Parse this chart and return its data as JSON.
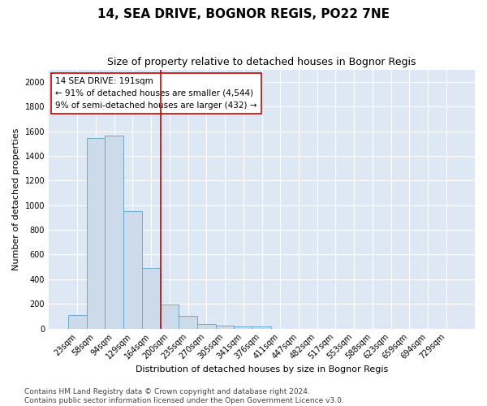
{
  "title": "14, SEA DRIVE, BOGNOR REGIS, PO22 7NE",
  "subtitle": "Size of property relative to detached houses in Bognor Regis",
  "xlabel": "Distribution of detached houses by size in Bognor Regis",
  "ylabel": "Number of detached properties",
  "categories": [
    "23sqm",
    "58sqm",
    "94sqm",
    "129sqm",
    "164sqm",
    "200sqm",
    "235sqm",
    "270sqm",
    "305sqm",
    "341sqm",
    "376sqm",
    "411sqm",
    "447sqm",
    "482sqm",
    "517sqm",
    "553sqm",
    "588sqm",
    "623sqm",
    "659sqm",
    "694sqm",
    "729sqm"
  ],
  "values": [
    110,
    1545,
    1565,
    950,
    490,
    195,
    100,
    35,
    25,
    20,
    20,
    0,
    0,
    0,
    0,
    0,
    0,
    0,
    0,
    0,
    0
  ],
  "bar_color": "#ccdaea",
  "bar_edge_color": "#6aaad4",
  "vline_x": 4.5,
  "vline_color": "#cc0000",
  "annotation_text": "14 SEA DRIVE: 191sqm\n← 91% of detached houses are smaller (4,544)\n9% of semi-detached houses are larger (432) →",
  "annotation_box_color": "#ffffff",
  "annotation_box_edge": "#cc0000",
  "ylim": [
    0,
    2100
  ],
  "yticks": [
    0,
    200,
    400,
    600,
    800,
    1000,
    1200,
    1400,
    1600,
    1800,
    2000
  ],
  "footer_text": "Contains HM Land Registry data © Crown copyright and database right 2024.\nContains public sector information licensed under the Open Government Licence v3.0.",
  "background_color": "#dde8f4",
  "grid_color": "#ffffff",
  "title_fontsize": 11,
  "subtitle_fontsize": 9,
  "axis_label_fontsize": 8,
  "tick_fontsize": 7,
  "annotation_fontsize": 7.5,
  "footer_fontsize": 6.5
}
